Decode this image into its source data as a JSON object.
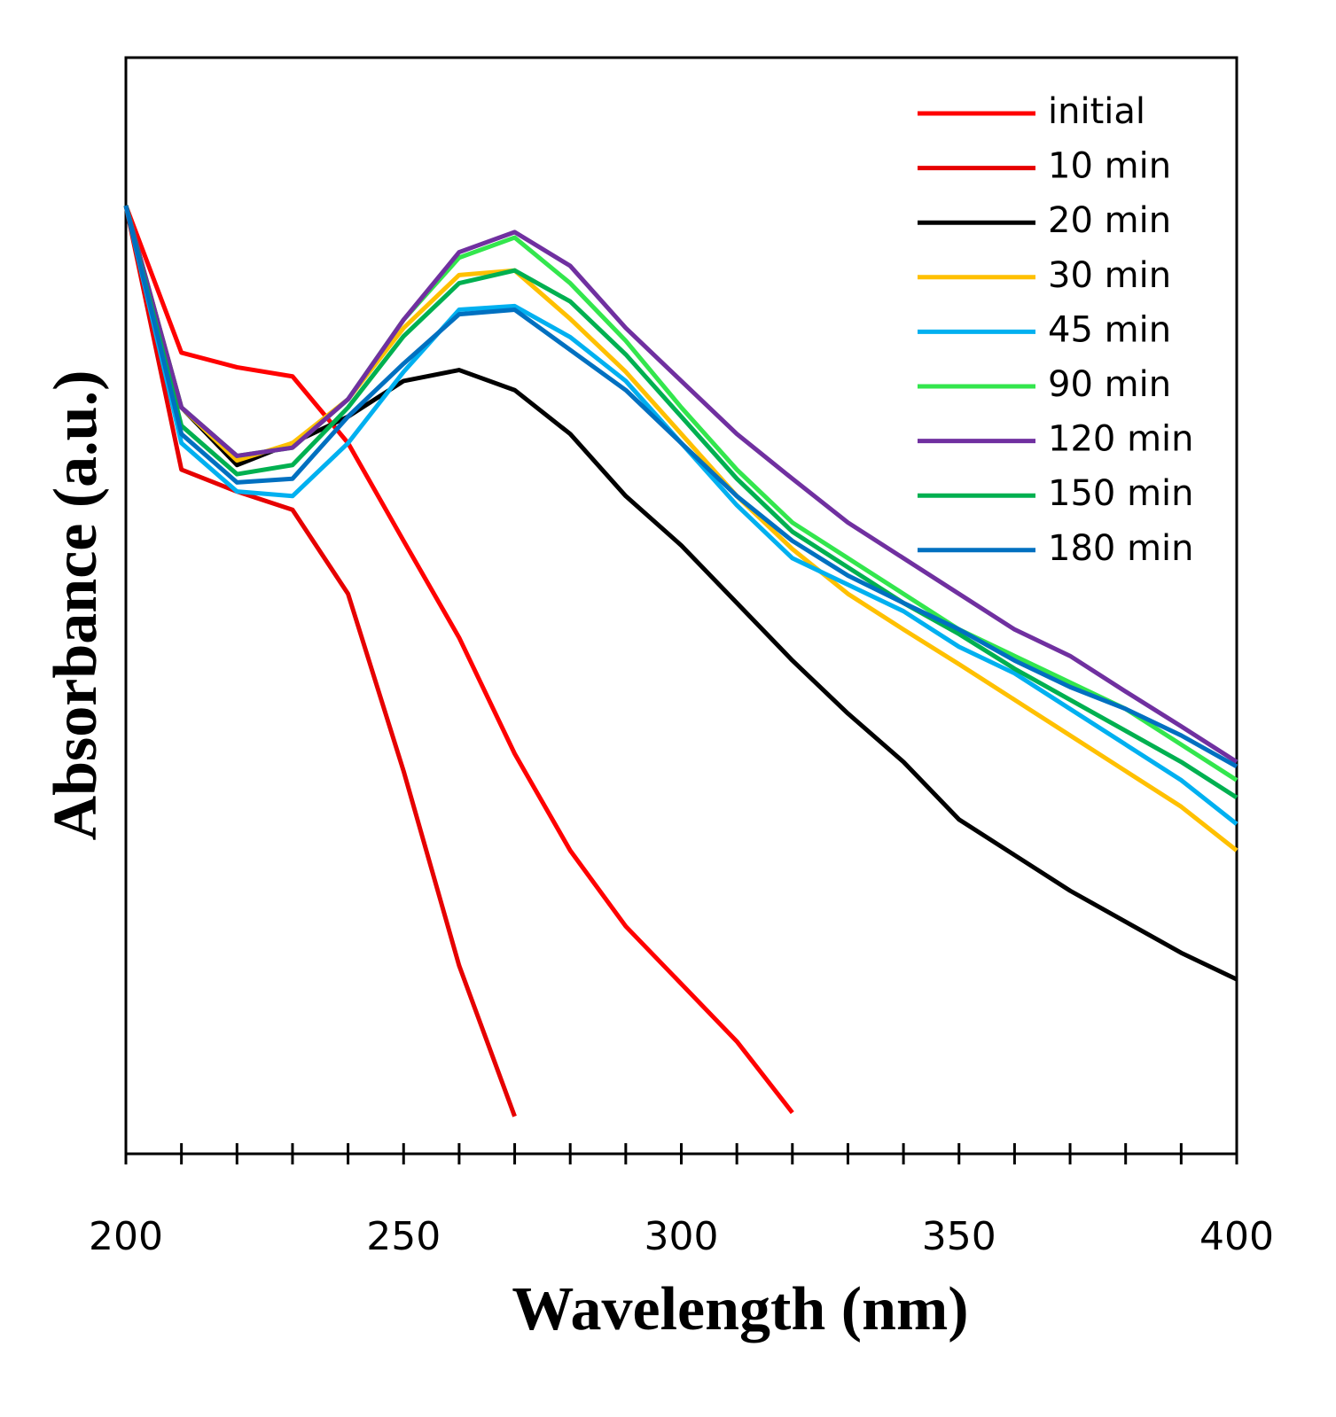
{
  "chart_data": {
    "type": "line",
    "xlabel": "Wavelength (nm)",
    "ylabel": "Absorbance (a.u.)",
    "x": [
      200,
      210,
      220,
      230,
      240,
      250,
      260,
      270,
      280,
      290,
      300,
      310,
      320,
      330,
      340,
      350,
      360,
      370,
      380,
      390,
      400
    ],
    "xlim": [
      200,
      400
    ],
    "xticks": [
      200,
      250,
      300,
      350,
      400
    ],
    "xminor_ticks": [
      210,
      220,
      230,
      240,
      260,
      270,
      280,
      290,
      310,
      320,
      330,
      340,
      360,
      370,
      380,
      390
    ],
    "ylim": [
      0,
      1.2
    ],
    "legend": "upper right",
    "series": [
      {
        "name": "initial",
        "color": "#ff0000",
        "values": [
          1.038,
          0.877,
          0.861,
          0.851,
          0.778,
          0.671,
          0.565,
          0.438,
          0.332,
          0.249,
          0.186,
          0.123,
          0.045,
          null,
          null,
          null,
          null,
          null,
          null,
          null,
          null
        ]
      },
      {
        "name": "10 min",
        "color": "#e60000",
        "values": [
          1.038,
          0.749,
          0.725,
          0.705,
          0.613,
          0.419,
          0.206,
          0.041,
          null,
          null,
          null,
          null,
          null,
          null,
          null,
          null,
          null,
          null,
          null,
          null,
          null
        ]
      },
      {
        "name": "20 min",
        "color": "#000000",
        "values": [
          1.038,
          0.817,
          0.754,
          0.778,
          0.807,
          0.846,
          0.858,
          0.836,
          0.788,
          0.72,
          0.666,
          0.603,
          0.54,
          0.482,
          0.429,
          0.366,
          0.327,
          0.288,
          0.254,
          0.22,
          0.191
        ]
      },
      {
        "name": "30 min",
        "color": "#ffc000",
        "values": [
          1.038,
          0.817,
          0.759,
          0.778,
          0.826,
          0.904,
          0.962,
          0.967,
          0.914,
          0.856,
          0.788,
          0.72,
          0.662,
          0.613,
          0.574,
          0.536,
          0.497,
          0.458,
          0.419,
          0.38,
          0.332
        ]
      },
      {
        "name": "45 min",
        "color": "#00b0f0",
        "values": [
          1.038,
          0.778,
          0.725,
          0.72,
          0.778,
          0.856,
          0.924,
          0.928,
          0.894,
          0.846,
          0.778,
          0.71,
          0.652,
          0.623,
          0.594,
          0.555,
          0.526,
          0.487,
          0.448,
          0.409,
          0.361
        ]
      },
      {
        "name": "90 min",
        "color": "#33e64d",
        "values": [
          1.038,
          0.817,
          0.764,
          0.773,
          0.826,
          0.913,
          0.981,
          1.003,
          0.953,
          0.89,
          0.817,
          0.749,
          0.691,
          0.652,
          0.613,
          0.574,
          0.545,
          0.516,
          0.487,
          0.448,
          0.409
        ]
      },
      {
        "name": "120 min",
        "color": "#7030a0",
        "values": [
          1.038,
          0.817,
          0.764,
          0.773,
          0.826,
          0.913,
          0.987,
          1.009,
          0.972,
          0.904,
          0.846,
          0.788,
          0.739,
          0.691,
          0.652,
          0.613,
          0.574,
          0.545,
          0.506,
          0.468,
          0.429
        ]
      },
      {
        "name": "150 min",
        "color": "#00b050",
        "values": [
          1.038,
          0.797,
          0.744,
          0.754,
          0.817,
          0.895,
          0.953,
          0.967,
          0.933,
          0.875,
          0.807,
          0.739,
          0.681,
          0.642,
          0.603,
          0.569,
          0.531,
          0.497,
          0.463,
          0.429,
          0.39
        ]
      },
      {
        "name": "180 min",
        "color": "#0070c0",
        "values": [
          1.038,
          0.788,
          0.735,
          0.739,
          0.807,
          0.865,
          0.919,
          0.924,
          0.88,
          0.836,
          0.778,
          0.72,
          0.671,
          0.633,
          0.603,
          0.574,
          0.54,
          0.511,
          0.487,
          0.458,
          0.424
        ]
      }
    ]
  }
}
